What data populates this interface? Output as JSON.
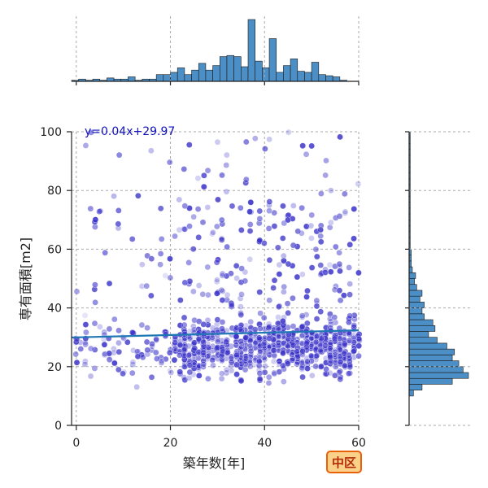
{
  "chart_data": {
    "type": "scatter",
    "title": "",
    "xlabel": "築年数[年]",
    "ylabel": "専有面積[m2]",
    "xlim": [
      -1,
      60
    ],
    "ylim": [
      0,
      100
    ],
    "xticks": [
      0,
      20,
      40,
      60
    ],
    "yticks": [
      0,
      20,
      40,
      60,
      80,
      100
    ],
    "grid": true,
    "point_color": "#3a32c8",
    "regression": {
      "label": "y=0.04x+29.97",
      "slope": 0.04,
      "intercept": 29.97,
      "color": "#1f77b4",
      "label_color": "#1010c0"
    },
    "marginal_x_hist": {
      "bin_width": 1.5,
      "bins_start": -1,
      "counts": [
        1,
        2,
        1,
        2,
        1,
        3,
        2,
        2,
        4,
        1,
        2,
        2,
        6,
        6,
        8,
        12,
        6,
        10,
        16,
        10,
        14,
        22,
        23,
        22,
        13,
        55,
        18,
        12,
        38,
        8,
        14,
        20,
        9,
        8,
        17,
        6,
        5,
        4,
        1
      ],
      "color": "#4c8fc6"
    },
    "marginal_y_hist": {
      "bin_width": 2,
      "bins_start": 10,
      "counts": [
        4,
        12,
        40,
        55,
        50,
        46,
        40,
        42,
        35,
        26,
        18,
        24,
        22,
        14,
        12,
        14,
        10,
        12,
        7,
        5,
        6,
        3,
        2,
        2,
        2,
        1,
        1,
        1,
        1,
        1,
        1,
        1,
        1,
        1,
        1,
        1,
        1,
        1,
        1,
        1,
        1,
        1,
        1,
        1,
        1
      ],
      "color": "#4c8fc6"
    },
    "points_sample_seed": 20240,
    "points_count": 1900
  },
  "badge": {
    "label": "中区",
    "background": "#fbd18a",
    "border": "#e8620c",
    "text_color": "#b42a0a"
  }
}
